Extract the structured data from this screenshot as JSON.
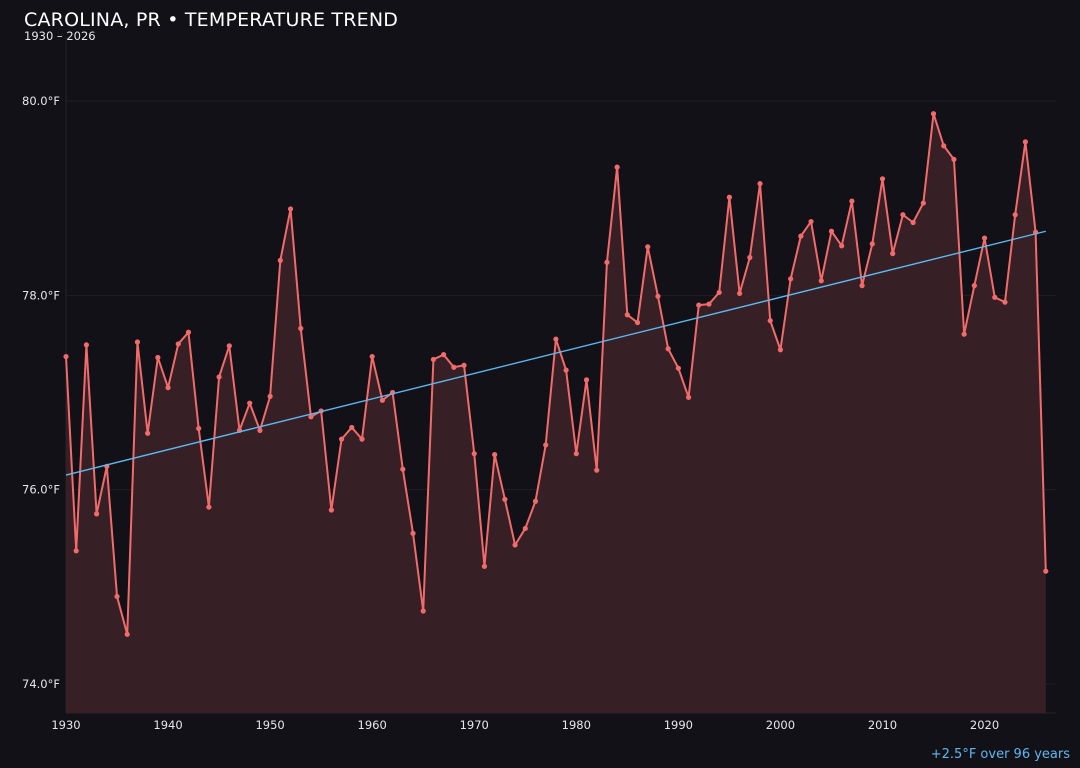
{
  "chart_data": {
    "type": "line",
    "title": "CAROLINA, PR • TEMPERATURE TREND",
    "subtitle": "1930 – 2026",
    "annotation": "+2.5°F over 96 years",
    "xlim": [
      1930,
      2027
    ],
    "ylim": [
      73.7,
      80.66
    ],
    "grid": true,
    "x_ticks": [
      1930,
      1940,
      1950,
      1960,
      1970,
      1980,
      1990,
      2000,
      2010,
      2020
    ],
    "y_ticks": [
      {
        "v": 74,
        "label": "74.0°F"
      },
      {
        "v": 76,
        "label": "76.0°F"
      },
      {
        "v": 78,
        "label": "78.0°F"
      },
      {
        "v": 80,
        "label": "80.0°F"
      }
    ],
    "colors": {
      "line": "#f26b6b",
      "fill": "#361f25",
      "trend": "#5cb8ef",
      "background": "#121118"
    },
    "x_start": 1930,
    "values": [
      77.37,
      75.37,
      77.49,
      75.75,
      76.24,
      74.9,
      74.51,
      77.52,
      76.58,
      77.36,
      77.05,
      77.5,
      77.62,
      76.63,
      75.82,
      77.16,
      77.48,
      76.61,
      76.89,
      76.61,
      76.96,
      78.36,
      78.89,
      77.66,
      76.75,
      76.81,
      75.79,
      76.52,
      76.64,
      76.52,
      77.37,
      76.92,
      77.0,
      76.21,
      75.55,
      74.75,
      77.34,
      77.39,
      77.26,
      77.28,
      76.37,
      75.21,
      76.36,
      75.9,
      75.43,
      75.6,
      75.88,
      76.46,
      77.55,
      77.23,
      76.37,
      77.13,
      76.2,
      78.34,
      79.32,
      77.8,
      77.72,
      78.5,
      77.99,
      77.45,
      77.25,
      76.95,
      77.9,
      77.91,
      78.03,
      79.01,
      78.02,
      78.39,
      79.15,
      77.74,
      77.44,
      78.17,
      78.61,
      78.76,
      78.15,
      78.66,
      78.51,
      78.97,
      78.1,
      78.53,
      79.2,
      78.43,
      78.83,
      78.75,
      78.95,
      79.87,
      79.54,
      79.4,
      77.6,
      78.1,
      78.59,
      77.98,
      77.93,
      78.83,
      79.58,
      78.65,
      75.16
    ],
    "trend": {
      "x": [
        1930,
        2026
      ],
      "y": [
        76.15,
        78.66
      ]
    }
  }
}
